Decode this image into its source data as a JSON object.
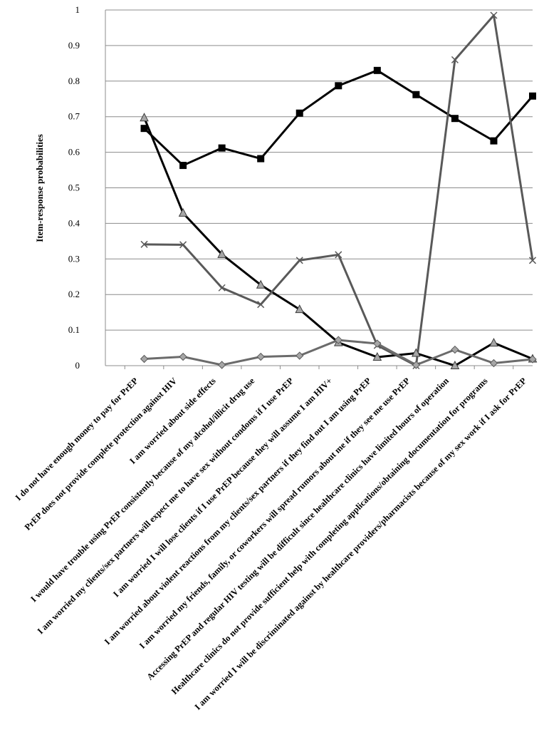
{
  "chart_data": {
    "type": "line",
    "title": "",
    "xlabel": "",
    "ylabel": "Item-response probabilities",
    "ylim": [
      0,
      1
    ],
    "yticks": [
      "0",
      "0.1",
      "0.2",
      "0.3",
      "0.4",
      "0.5",
      "0.6",
      "0.7",
      "0.8",
      "0.9",
      "1"
    ],
    "grid": true,
    "legend": "none",
    "categories": [
      "I do not have enough money to pay for PrEP",
      "PrEP does not provide complete protection against HIV",
      "I am worried about side effects",
      "I would have trouble using PrEP consistently because of my alcohol/illicit drug use",
      "I am worried my clients/sex partners will expect me to have sex without condoms if I use PrEP",
      "I am worried I will lose clients if I use PrEP because they will assume I am HIV+",
      "I am worried about violent reactions from my clients/sex partners if they find out I am using PrEP",
      "I am worried my friends, family, or coworkers will spread rumors about me if they see me use PrEP",
      "Accessing PrEP and regular HIV testing will be difficult since healthcare clinics have limited hours of operation",
      "Healthcare clinics do not provide sufficient help with completing applications/obtaining documentation for programs",
      "I am worried I will be discriminated against by healthcare providers/pharmacists because of my sex work if I ask for PrEP"
    ],
    "series": [
      {
        "marker": "square",
        "line_color": "#000000",
        "marker_color": "#000000",
        "values": [
          0.667,
          0.563,
          0.612,
          0.582,
          0.71,
          0.787,
          0.83,
          0.762,
          0.695,
          0.632,
          0.758
        ]
      },
      {
        "marker": "triangle",
        "line_color": "#000000",
        "marker_color": "#a6a6a6",
        "values": [
          0.697,
          0.429,
          0.313,
          0.227,
          0.158,
          0.065,
          0.024,
          0.035,
          0.0,
          0.064,
          0.019
        ]
      },
      {
        "marker": "x",
        "line_color": "#595959",
        "marker_color": "#595959",
        "values": [
          0.341,
          0.34,
          0.219,
          0.172,
          0.296,
          0.312,
          0.057,
          0.0,
          0.86,
          0.985,
          0.296
        ]
      },
      {
        "marker": "diamond",
        "line_color": "#6b6b6b",
        "marker_color": "#a6a6a6",
        "values": [
          0.019,
          0.025,
          0.002,
          0.025,
          0.028,
          0.072,
          0.062,
          0.002,
          0.045,
          0.007,
          0.018
        ]
      }
    ]
  }
}
